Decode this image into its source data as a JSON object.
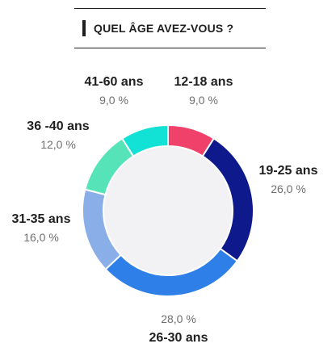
{
  "header": {
    "title": "QUEL ÂGE AVEZ-VOUS ?"
  },
  "chart_data": {
    "type": "pie",
    "donut": true,
    "title": "QUEL ÂGE AVEZ-VOUS ?",
    "categories": [
      "12-18 ans",
      "19-25 ans",
      "26-30 ans",
      "31-35 ans",
      "36 -40 ans",
      "41-60 ans"
    ],
    "values": [
      9.0,
      26.0,
      28.0,
      16.0,
      12.0,
      9.0
    ],
    "value_labels": [
      "9,0 %",
      "26,0 %",
      "28,0 %",
      "16,0 %",
      "12,0 %",
      "9,0 %"
    ],
    "colors": [
      "#f0416a",
      "#0e1a8c",
      "#2f7fe8",
      "#8aaee8",
      "#56e3b8",
      "#12e2d6"
    ],
    "center_color": "#f2f2f5",
    "legend": "none"
  }
}
